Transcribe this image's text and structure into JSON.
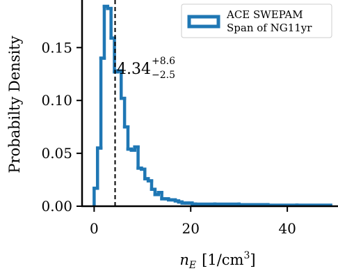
{
  "chart_data": {
    "type": "histogram",
    "title": "",
    "xlabel": "n_E [1/cm³]",
    "xlabel_base": "n",
    "xlabel_sub": "E",
    "xlabel_unit": "[1/cm",
    "xlabel_sup": "3",
    "xlabel_close": "]",
    "ylabel": "Probabilty Density",
    "xlim": [
      -2.5,
      50.5
    ],
    "ylim": [
      0,
      0.195
    ],
    "xticks": [
      0,
      20,
      40
    ],
    "xtick_labels": [
      "0",
      "20",
      "40"
    ],
    "yticks": [
      0.0,
      0.05,
      0.1,
      0.15
    ],
    "ytick_labels": [
      "0.00",
      "0.05",
      "0.10",
      "0.15"
    ],
    "grid": false,
    "legend_position": "top-right",
    "series": [
      {
        "name": "ACE SWEPAM Span of NG11yr",
        "legend_line1": "ACE SWEPAM",
        "legend_line2": "Span of NG11yr",
        "color": "#1f77b4",
        "bin_edges": [
          0.0,
          0.7,
          1.4,
          2.1,
          2.8,
          3.5,
          4.2,
          4.9,
          5.6,
          6.3,
          7.0,
          7.7,
          8.4,
          9.1,
          9.8,
          10.5,
          11.2,
          11.9,
          12.6,
          13.3,
          14.0,
          14.7,
          15.4,
          16.1,
          16.8,
          17.5,
          18.2,
          18.9,
          19.6,
          20.3,
          21.0,
          25.0,
          30.0,
          36.0,
          42.0,
          49.0
        ],
        "values": [
          0.017,
          0.055,
          0.14,
          0.189,
          0.187,
          0.159,
          0.127,
          0.128,
          0.102,
          0.075,
          0.054,
          0.053,
          0.056,
          0.036,
          0.035,
          0.026,
          0.024,
          0.016,
          0.011,
          0.013,
          0.007,
          0.007,
          0.006,
          0.006,
          0.005,
          0.004,
          0.003,
          0.003,
          0.003,
          0.002,
          0.002,
          0.002,
          0.0015,
          0.001,
          0.001
        ]
      }
    ],
    "median_line": {
      "x": 4.34,
      "style": "dashed",
      "color": "#000000"
    },
    "annotation": {
      "value": "4.34",
      "plus": "+8.6",
      "minus": "−2.5"
    }
  }
}
